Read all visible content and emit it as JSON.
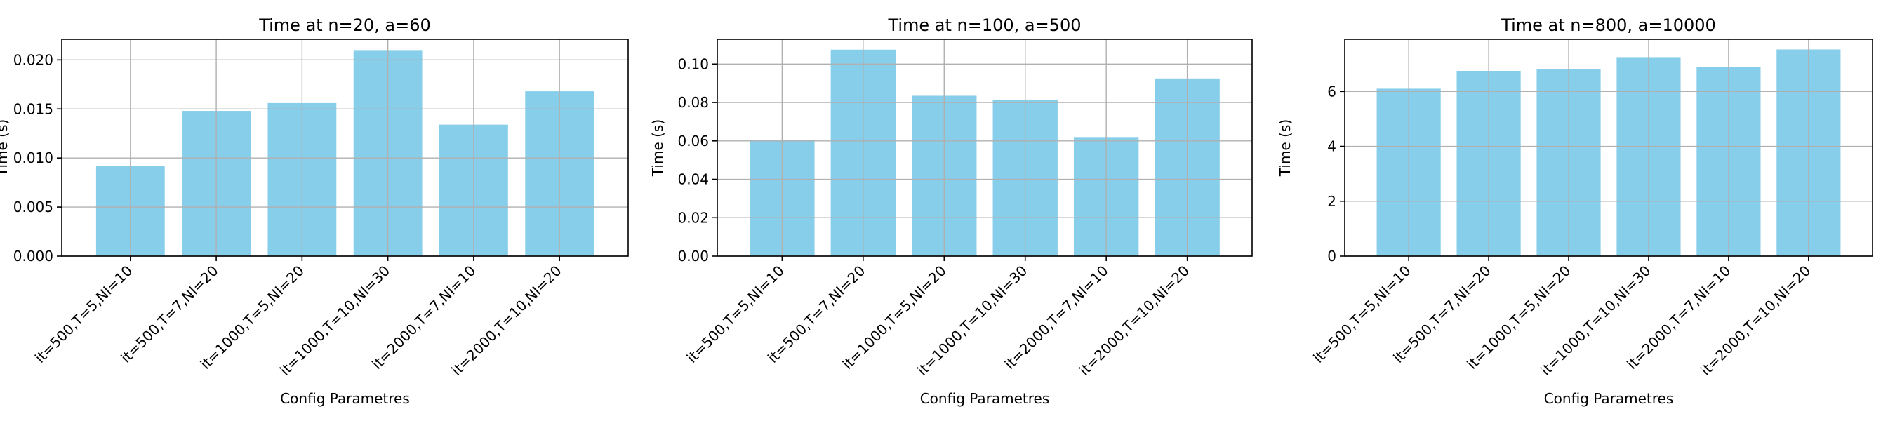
{
  "chart_data": [
    {
      "type": "bar",
      "title": "Time at n=20, a=60",
      "xlabel": "Config Parametres",
      "ylabel": "Time (s)",
      "categories": [
        "it=500,T=5,NI=10",
        "it=500,T=7,NI=20",
        "it=1000,T=5,NI=20",
        "it=1000,T=10,NI=30",
        "it=2000,T=7,NI=10",
        "it=2000,T=10,NI=20"
      ],
      "values": [
        0.0092,
        0.0148,
        0.0156,
        0.021,
        0.0134,
        0.0168
      ],
      "ylim": [
        0,
        0.0221
      ],
      "yticks": [
        0,
        0.005,
        0.01,
        0.015,
        0.02
      ],
      "ytick_labels": [
        "0.000",
        "0.005",
        "0.010",
        "0.015",
        "0.020"
      ],
      "grid": true,
      "bar_color": "#87ceeb"
    },
    {
      "type": "bar",
      "title": "Time at n=100, a=500",
      "xlabel": "Config Parametres",
      "ylabel": "Time (s)",
      "categories": [
        "it=500,T=5,NI=10",
        "it=500,T=7,NI=20",
        "it=1000,T=5,NI=20",
        "it=1000,T=10,NI=30",
        "it=2000,T=7,NI=10",
        "it=2000,T=10,NI=20"
      ],
      "values": [
        0.0605,
        0.1075,
        0.0835,
        0.0815,
        0.062,
        0.0925
      ],
      "ylim": [
        0,
        0.1129
      ],
      "yticks": [
        0,
        0.02,
        0.04,
        0.06,
        0.08,
        0.1
      ],
      "ytick_labels": [
        "0.00",
        "0.02",
        "0.04",
        "0.06",
        "0.08",
        "0.10"
      ],
      "grid": true,
      "bar_color": "#87ceeb"
    },
    {
      "type": "bar",
      "title": "Time at n=800, a=10000",
      "xlabel": "Config Parametres",
      "ylabel": "Time (s)",
      "categories": [
        "it=500,T=5,NI=10",
        "it=500,T=7,NI=20",
        "it=1000,T=5,NI=20",
        "it=1000,T=10,NI=30",
        "it=2000,T=7,NI=10",
        "it=2000,T=10,NI=20"
      ],
      "values": [
        6.1,
        6.75,
        6.82,
        7.25,
        6.88,
        7.53
      ],
      "ylim": [
        0,
        7.9
      ],
      "yticks": [
        0,
        2,
        4,
        6
      ],
      "ytick_labels": [
        "0",
        "2",
        "4",
        "6"
      ],
      "grid": true,
      "bar_color": "#87ceeb"
    }
  ]
}
